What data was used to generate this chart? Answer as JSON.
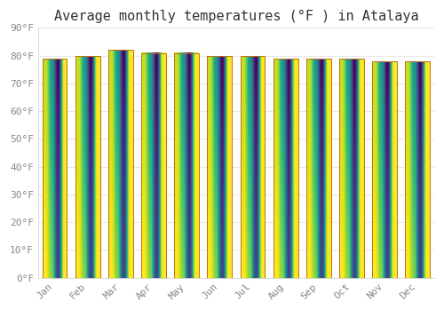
{
  "title": "Average monthly temperatures (°F ) in Atalaya",
  "months": [
    "Jan",
    "Feb",
    "Mar",
    "Apr",
    "May",
    "Jun",
    "Jul",
    "Aug",
    "Sep",
    "Oct",
    "Nov",
    "Dec"
  ],
  "values": [
    79,
    80,
    82,
    81,
    81,
    80,
    80,
    79,
    79,
    79,
    78,
    78
  ],
  "bar_color_dark": "#E8900A",
  "bar_color_light": "#FFD050",
  "background_color": "#FFFFFF",
  "grid_color": "#E8E8E8",
  "ylim": [
    0,
    90
  ],
  "yticks": [
    0,
    10,
    20,
    30,
    40,
    50,
    60,
    70,
    80,
    90
  ],
  "ytick_labels": [
    "0°F",
    "10°F",
    "20°F",
    "30°F",
    "40°F",
    "50°F",
    "60°F",
    "70°F",
    "80°F",
    "90°F"
  ],
  "title_fontsize": 11,
  "tick_fontsize": 8,
  "font_family": "monospace",
  "bar_edge_color": "#C07010",
  "bar_width": 0.75
}
